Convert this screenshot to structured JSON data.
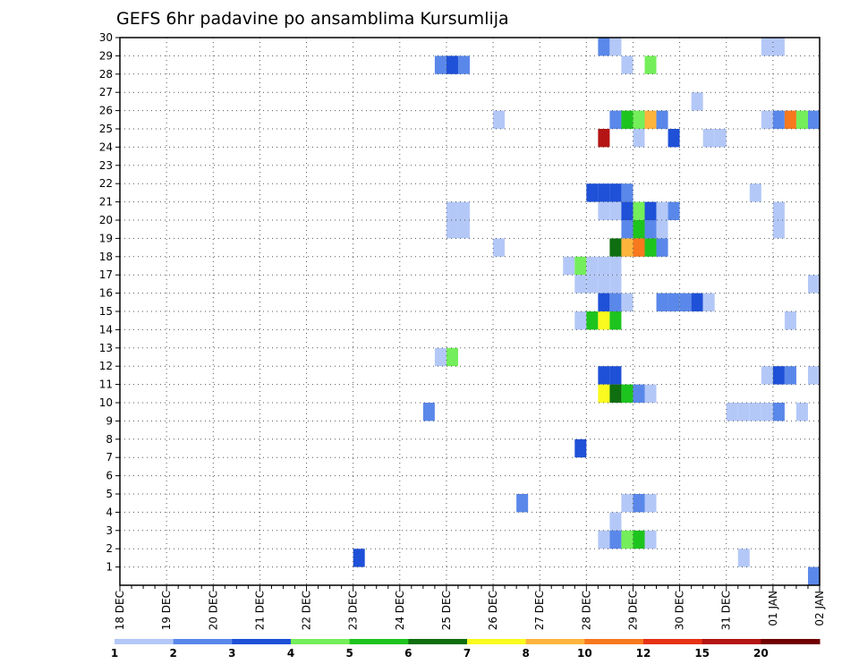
{
  "chart_data": {
    "type": "heatmap",
    "title": "GEFS 6hr padavine po ansamblima Kursumlija",
    "xlabel": "",
    "ylabel": "",
    "x_tick_labels": [
      "18 DEC",
      "19 DEC",
      "20 DEC",
      "21 DEC",
      "22 DEC",
      "23 DEC",
      "24 DEC",
      "25 DEC",
      "26 DEC",
      "27 DEC",
      "28 DEC",
      "29 DEC",
      "30 DEC",
      "31 DEC",
      "01 JAN",
      "02 JAN"
    ],
    "y_tick_labels": [
      "1",
      "2",
      "3",
      "4",
      "5",
      "6",
      "7",
      "8",
      "9",
      "10",
      "11",
      "12",
      "13",
      "14",
      "15",
      "16",
      "17",
      "18",
      "19",
      "20",
      "21",
      "22",
      "23",
      "24",
      "25",
      "26",
      "27",
      "28",
      "29",
      "30"
    ],
    "x_range_steps": [
      0,
      60
    ],
    "y_range": [
      0,
      30
    ],
    "grid": true,
    "colorbar": {
      "labels": [
        "1",
        "2",
        "3",
        "4",
        "5",
        "6",
        "7",
        "8",
        "10",
        "12",
        "15",
        "20"
      ],
      "colors": [
        "#b4c8f8",
        "#5a88ea",
        "#1e50d8",
        "#74ee5a",
        "#1ec41e",
        "#0f6e0f",
        "#fafa1e",
        "#fcb43c",
        "#f8781e",
        "#e63214",
        "#b41414",
        "#700000"
      ]
    },
    "cells": [
      {
        "step": 41,
        "member": 29,
        "level": 1
      },
      {
        "step": 42,
        "member": 29,
        "level": 0
      },
      {
        "step": 55,
        "member": 29,
        "level": 0
      },
      {
        "step": 56,
        "member": 29,
        "level": 0
      },
      {
        "step": 27,
        "member": 28,
        "level": 1
      },
      {
        "step": 28,
        "member": 28,
        "level": 2
      },
      {
        "step": 29,
        "member": 28,
        "level": 1
      },
      {
        "step": 43,
        "member": 28,
        "level": 0
      },
      {
        "step": 45,
        "member": 28,
        "level": 3
      },
      {
        "step": 49,
        "member": 26,
        "level": 0
      },
      {
        "step": 32,
        "member": 25,
        "level": 0
      },
      {
        "step": 42,
        "member": 25,
        "level": 1
      },
      {
        "step": 43,
        "member": 25,
        "level": 4
      },
      {
        "step": 44,
        "member": 25,
        "level": 3
      },
      {
        "step": 45,
        "member": 25,
        "level": 7
      },
      {
        "step": 46,
        "member": 25,
        "level": 1
      },
      {
        "step": 55,
        "member": 25,
        "level": 0
      },
      {
        "step": 56,
        "member": 25,
        "level": 1
      },
      {
        "step": 57,
        "member": 25,
        "level": 8
      },
      {
        "step": 58,
        "member": 25,
        "level": 3
      },
      {
        "step": 59,
        "member": 25,
        "level": 1
      },
      {
        "step": 41,
        "member": 24,
        "level": 10
      },
      {
        "step": 44,
        "member": 24,
        "level": 0
      },
      {
        "step": 47,
        "member": 24,
        "level": 2
      },
      {
        "step": 50,
        "member": 24,
        "level": 0
      },
      {
        "step": 51,
        "member": 24,
        "level": 0
      },
      {
        "step": 40,
        "member": 21,
        "level": 2
      },
      {
        "step": 41,
        "member": 21,
        "level": 2
      },
      {
        "step": 42,
        "member": 21,
        "level": 2
      },
      {
        "step": 43,
        "member": 21,
        "level": 1
      },
      {
        "step": 54,
        "member": 21,
        "level": 0
      },
      {
        "step": 28,
        "member": 20,
        "level": 0
      },
      {
        "step": 29,
        "member": 20,
        "level": 0
      },
      {
        "step": 41,
        "member": 20,
        "level": 0
      },
      {
        "step": 42,
        "member": 20,
        "level": 0
      },
      {
        "step": 43,
        "member": 20,
        "level": 2
      },
      {
        "step": 44,
        "member": 20,
        "level": 3
      },
      {
        "step": 45,
        "member": 20,
        "level": 2
      },
      {
        "step": 46,
        "member": 20,
        "level": 0
      },
      {
        "step": 47,
        "member": 20,
        "level": 1
      },
      {
        "step": 56,
        "member": 20,
        "level": 0
      },
      {
        "step": 28,
        "member": 19,
        "level": 0
      },
      {
        "step": 29,
        "member": 19,
        "level": 0
      },
      {
        "step": 43,
        "member": 19,
        "level": 1
      },
      {
        "step": 44,
        "member": 19,
        "level": 4
      },
      {
        "step": 45,
        "member": 19,
        "level": 1
      },
      {
        "step": 46,
        "member": 19,
        "level": 0
      },
      {
        "step": 56,
        "member": 19,
        "level": 0
      },
      {
        "step": 32,
        "member": 18,
        "level": 0
      },
      {
        "step": 42,
        "member": 18,
        "level": 5
      },
      {
        "step": 43,
        "member": 18,
        "level": 7
      },
      {
        "step": 44,
        "member": 18,
        "level": 8
      },
      {
        "step": 45,
        "member": 18,
        "level": 4
      },
      {
        "step": 46,
        "member": 18,
        "level": 1
      },
      {
        "step": 38,
        "member": 17,
        "level": 0
      },
      {
        "step": 39,
        "member": 17,
        "level": 3
      },
      {
        "step": 40,
        "member": 17,
        "level": 0
      },
      {
        "step": 41,
        "member": 17,
        "level": 0
      },
      {
        "step": 42,
        "member": 17,
        "level": 0
      },
      {
        "step": 39,
        "member": 16,
        "level": 0
      },
      {
        "step": 40,
        "member": 16,
        "level": 0
      },
      {
        "step": 41,
        "member": 16,
        "level": 0
      },
      {
        "step": 42,
        "member": 16,
        "level": 0
      },
      {
        "step": 59,
        "member": 16,
        "level": 0
      },
      {
        "step": 41,
        "member": 15,
        "level": 2
      },
      {
        "step": 42,
        "member": 15,
        "level": 1
      },
      {
        "step": 43,
        "member": 15,
        "level": 0
      },
      {
        "step": 46,
        "member": 15,
        "level": 1
      },
      {
        "step": 47,
        "member": 15,
        "level": 1
      },
      {
        "step": 48,
        "member": 15,
        "level": 1
      },
      {
        "step": 49,
        "member": 15,
        "level": 2
      },
      {
        "step": 50,
        "member": 15,
        "level": 0
      },
      {
        "step": 39,
        "member": 14,
        "level": 0
      },
      {
        "step": 40,
        "member": 14,
        "level": 4
      },
      {
        "step": 41,
        "member": 14,
        "level": 6
      },
      {
        "step": 42,
        "member": 14,
        "level": 4
      },
      {
        "step": 57,
        "member": 14,
        "level": 0
      },
      {
        "step": 27,
        "member": 12,
        "level": 0
      },
      {
        "step": 28,
        "member": 12,
        "level": 3
      },
      {
        "step": 41,
        "member": 11,
        "level": 2
      },
      {
        "step": 42,
        "member": 11,
        "level": 2
      },
      {
        "step": 55,
        "member": 11,
        "level": 0
      },
      {
        "step": 56,
        "member": 11,
        "level": 2
      },
      {
        "step": 57,
        "member": 11,
        "level": 1
      },
      {
        "step": 59,
        "member": 11,
        "level": 0
      },
      {
        "step": 41,
        "member": 10,
        "level": 6
      },
      {
        "step": 42,
        "member": 10,
        "level": 5
      },
      {
        "step": 43,
        "member": 10,
        "level": 4
      },
      {
        "step": 44,
        "member": 10,
        "level": 1
      },
      {
        "step": 45,
        "member": 10,
        "level": 0
      },
      {
        "step": 26,
        "member": 9,
        "level": 1
      },
      {
        "step": 52,
        "member": 9,
        "level": 0
      },
      {
        "step": 53,
        "member": 9,
        "level": 0
      },
      {
        "step": 54,
        "member": 9,
        "level": 0
      },
      {
        "step": 55,
        "member": 9,
        "level": 0
      },
      {
        "step": 56,
        "member": 9,
        "level": 1
      },
      {
        "step": 58,
        "member": 9,
        "level": 0
      },
      {
        "step": 39,
        "member": 7,
        "level": 2
      },
      {
        "step": 34,
        "member": 4,
        "level": 1
      },
      {
        "step": 43,
        "member": 4,
        "level": 0
      },
      {
        "step": 44,
        "member": 4,
        "level": 1
      },
      {
        "step": 45,
        "member": 4,
        "level": 0
      },
      {
        "step": 42,
        "member": 3,
        "level": 0
      },
      {
        "step": 41,
        "member": 2,
        "level": 0
      },
      {
        "step": 42,
        "member": 2,
        "level": 1
      },
      {
        "step": 43,
        "member": 2,
        "level": 3
      },
      {
        "step": 44,
        "member": 2,
        "level": 4
      },
      {
        "step": 45,
        "member": 2,
        "level": 0
      },
      {
        "step": 20,
        "member": 1,
        "level": 2
      },
      {
        "step": 53,
        "member": 1,
        "level": 0
      },
      {
        "step": 59,
        "member": 0,
        "level": 1
      }
    ]
  }
}
